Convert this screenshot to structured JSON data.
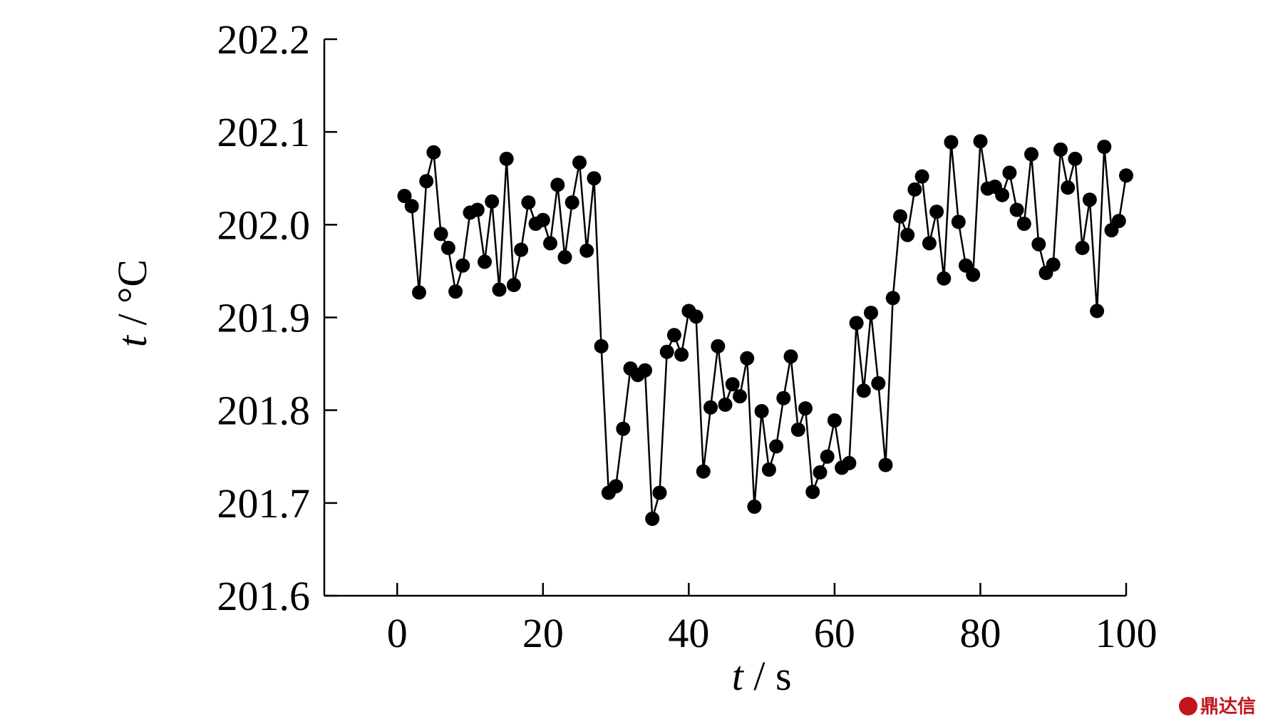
{
  "chart_data": {
    "type": "line",
    "xlabel_var": "t",
    "xlabel_unit": " / s",
    "ylabel_var": "t",
    "ylabel_unit": " / °C",
    "xlim": [
      -10,
      100
    ],
    "ylim": [
      201.6,
      202.2
    ],
    "x_ticks": [
      "0",
      "20",
      "40",
      "60",
      "80",
      "100"
    ],
    "x_tick_values": [
      0,
      20,
      40,
      60,
      80,
      100
    ],
    "y_ticks": [
      "201.6",
      "201.7",
      "201.8",
      "201.9",
      "202.0",
      "202.1",
      "202.2"
    ],
    "y_tick_values": [
      201.6,
      201.7,
      201.8,
      201.9,
      202.0,
      202.1,
      202.2
    ],
    "markers": "filled-circle",
    "color": "#000000",
    "series": [
      {
        "x": [
          1,
          2,
          3,
          4,
          5,
          6,
          7,
          8,
          9,
          10,
          11,
          12,
          13,
          14,
          15,
          16,
          17,
          18,
          19,
          20,
          21,
          22,
          23,
          24,
          25,
          26,
          27,
          28,
          29,
          30,
          31,
          32,
          33,
          34,
          35,
          36,
          37,
          38,
          39,
          40,
          41,
          42,
          43,
          44,
          45,
          46,
          47,
          48,
          49,
          50,
          51,
          52,
          53,
          54,
          55,
          56,
          57,
          58,
          59,
          60,
          61,
          62,
          63,
          64,
          65,
          66,
          67,
          68,
          69,
          70,
          71,
          72,
          73,
          74,
          75,
          76,
          77,
          78,
          79,
          80,
          81,
          82,
          83,
          84,
          85,
          86,
          87,
          88,
          89,
          90,
          91,
          92,
          93,
          94,
          95,
          96,
          97,
          98,
          99,
          100
        ],
        "y": [
          202.031,
          202.02,
          201.927,
          202.047,
          202.078,
          201.99,
          201.975,
          201.928,
          201.956,
          202.013,
          202.016,
          201.96,
          202.025,
          201.93,
          202.071,
          201.935,
          201.973,
          202.024,
          202.001,
          202.005,
          201.98,
          202.043,
          201.965,
          202.024,
          202.067,
          201.972,
          202.05,
          201.869,
          201.711,
          201.718,
          201.78,
          201.845,
          201.838,
          201.843,
          201.683,
          201.711,
          201.863,
          201.881,
          201.86,
          201.907,
          201.901,
          201.734,
          201.803,
          201.869,
          201.806,
          201.828,
          201.815,
          201.856,
          201.696,
          201.799,
          201.736,
          201.761,
          201.813,
          201.858,
          201.779,
          201.802,
          201.712,
          201.733,
          201.75,
          201.789,
          201.738,
          201.743,
          201.894,
          201.821,
          201.905,
          201.829,
          201.741,
          201.921,
          202.009,
          201.989,
          202.038,
          202.052,
          201.98,
          202.014,
          201.942,
          202.089,
          202.003,
          201.956,
          201.946,
          202.09,
          202.039,
          202.041,
          202.032,
          202.056,
          202.016,
          202.001,
          202.076,
          201.979,
          201.948,
          201.957,
          202.081,
          202.04,
          202.071,
          201.975,
          202.027,
          201.907,
          202.084,
          201.994,
          202.004,
          202.053
        ]
      }
    ]
  },
  "watermark": {
    "text": "鼎达信"
  }
}
